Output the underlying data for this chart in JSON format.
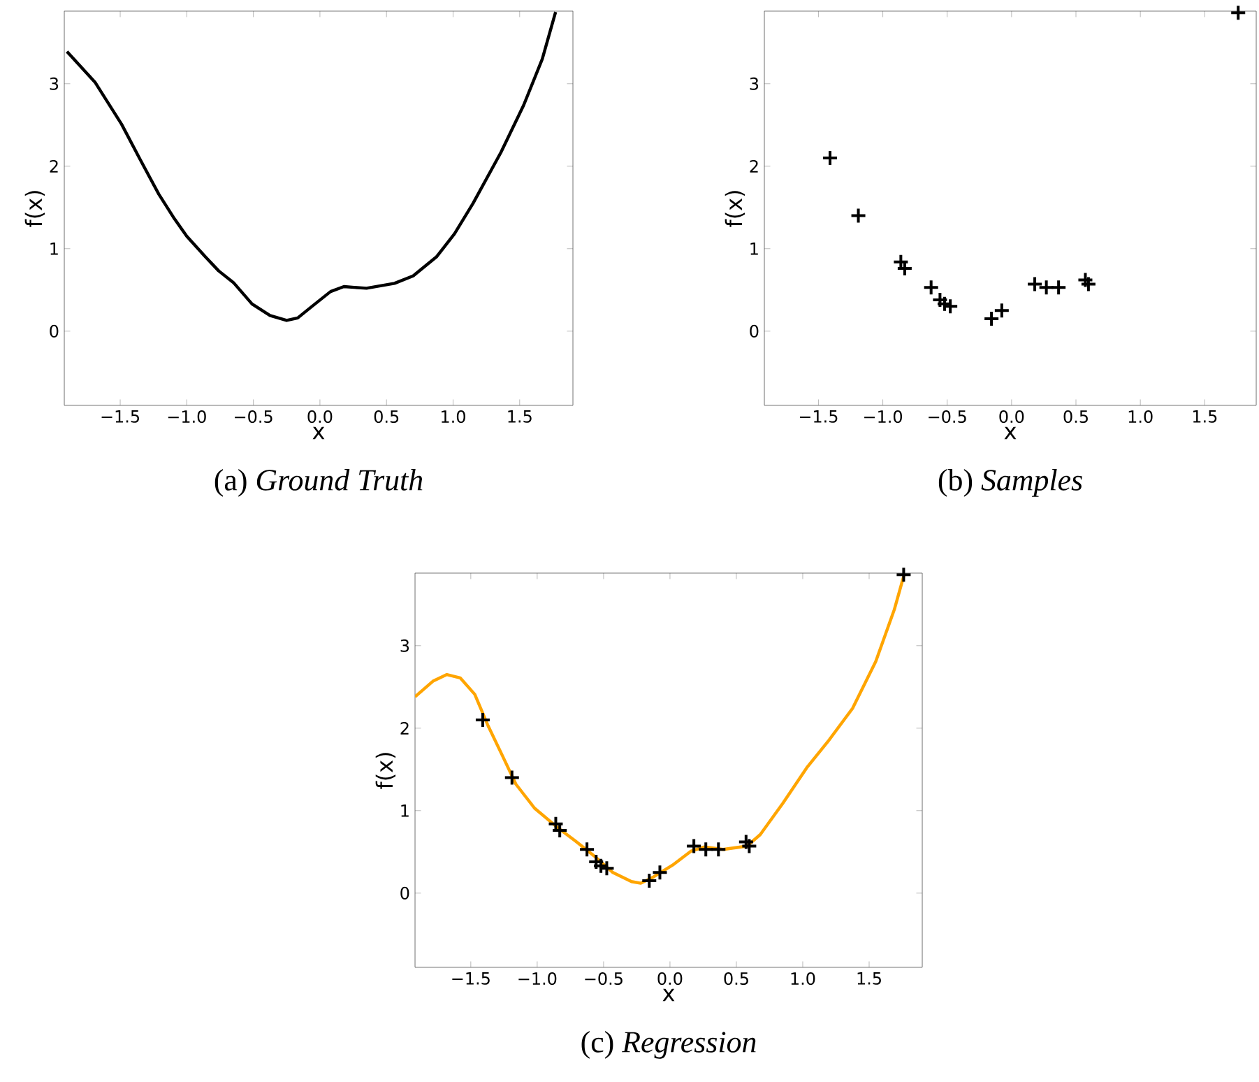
{
  "chart_data": [
    {
      "type": "line",
      "title": "(a) *Ground Truth*",
      "xlabel": "x",
      "ylabel": "f(x)",
      "xlim": [
        -1.92,
        1.9
      ],
      "ylim": [
        -0.9,
        3.88
      ],
      "xticks": [
        {
          "value": -1.5,
          "label": "−1.5"
        },
        {
          "value": -1.0,
          "label": "−1.0"
        },
        {
          "value": -0.5,
          "label": "−0.5"
        },
        {
          "value": 0.0,
          "label": "0.0"
        },
        {
          "value": 0.5,
          "label": "0.5"
        },
        {
          "value": 1.0,
          "label": "1.0"
        },
        {
          "value": 1.5,
          "label": "1.5"
        }
      ],
      "yticks": [
        0,
        1,
        2,
        3
      ],
      "series": [
        {
          "color": "#000000",
          "x": [
            -1.9,
            -1.69,
            -1.49,
            -1.35,
            -1.21,
            -1.1,
            -1.0,
            -0.86,
            -0.76,
            -0.65,
            -0.51,
            -0.375,
            -0.25,
            -0.167,
            -0.06,
            0.08,
            0.18,
            0.35,
            0.56,
            0.7,
            0.875,
            1.01,
            1.15,
            1.36,
            1.53,
            1.67,
            1.77
          ],
          "values": [
            3.39,
            3.02,
            2.51,
            2.08,
            1.66,
            1.38,
            1.15,
            0.9,
            0.73,
            0.59,
            0.33,
            0.19,
            0.13,
            0.16,
            0.3,
            0.48,
            0.54,
            0.52,
            0.58,
            0.67,
            0.9,
            1.18,
            1.55,
            2.17,
            2.74,
            3.3,
            3.87
          ]
        }
      ]
    },
    {
      "type": "scatter",
      "title": "(b) *Samples*",
      "xlabel": "x",
      "ylabel": "f(x)",
      "xlim": [
        -1.92,
        1.9
      ],
      "ylim": [
        -0.9,
        3.88
      ],
      "marker": "cross",
      "xticks": [
        {
          "value": -1.5,
          "label": "−1.5"
        },
        {
          "value": -1.0,
          "label": "−1.0"
        },
        {
          "value": -0.5,
          "label": "−0.5"
        },
        {
          "value": 0.0,
          "label": "0.0"
        },
        {
          "value": 0.5,
          "label": "0.5"
        },
        {
          "value": 1.0,
          "label": "1.0"
        },
        {
          "value": 1.5,
          "label": "1.5"
        }
      ],
      "yticks": [
        0,
        1,
        2,
        3
      ],
      "series": [
        {
          "color": "#000000",
          "x": [
            -1.41,
            -1.19,
            -0.86,
            -0.83,
            -0.625,
            -0.556,
            -0.52,
            -0.476,
            -0.156,
            -0.076,
            0.18,
            0.27,
            0.365,
            0.573,
            0.597,
            1.76
          ],
          "values": [
            2.1,
            1.4,
            0.84,
            0.76,
            0.53,
            0.38,
            0.33,
            0.3,
            0.15,
            0.25,
            0.57,
            0.53,
            0.53,
            0.62,
            0.57,
            3.86
          ]
        }
      ]
    },
    {
      "type": "line",
      "title": "(c) *Regression*",
      "xlabel": "x",
      "ylabel": "f(x)",
      "xlim": [
        -1.92,
        1.9
      ],
      "ylim": [
        -0.9,
        3.88
      ],
      "xticks": [
        {
          "value": -1.5,
          "label": "−1.5"
        },
        {
          "value": -1.0,
          "label": "−1.0"
        },
        {
          "value": -0.5,
          "label": "−0.5"
        },
        {
          "value": 0.0,
          "label": "0.0"
        },
        {
          "value": 0.5,
          "label": "0.5"
        },
        {
          "value": 1.0,
          "label": "1.0"
        },
        {
          "value": 1.5,
          "label": "1.5"
        }
      ],
      "yticks": [
        0,
        1,
        2,
        3
      ],
      "series": [
        {
          "type": "line",
          "color": "#ffa500",
          "x": [
            -1.92,
            -1.785,
            -1.68,
            -1.58,
            -1.47,
            -1.37,
            -1.26,
            -1.16,
            -1.02,
            -0.85,
            -0.71,
            -0.57,
            -0.43,
            -0.29,
            -0.22,
            -0.12,
            0.02,
            0.16,
            0.26,
            0.4,
            0.58,
            0.68,
            0.85,
            1.03,
            1.2,
            1.375,
            1.55,
            1.69,
            1.765
          ],
          "values": [
            2.38,
            2.57,
            2.65,
            2.61,
            2.41,
            2.03,
            1.66,
            1.32,
            1.03,
            0.8,
            0.63,
            0.45,
            0.25,
            0.14,
            0.12,
            0.2,
            0.34,
            0.51,
            0.56,
            0.53,
            0.57,
            0.71,
            1.09,
            1.52,
            1.86,
            2.24,
            2.81,
            3.44,
            3.87
          ]
        },
        {
          "type": "scatter",
          "marker": "cross",
          "color": "#000000",
          "x": [
            -1.41,
            -1.19,
            -0.86,
            -0.83,
            -0.625,
            -0.556,
            -0.52,
            -0.476,
            -0.156,
            -0.076,
            0.18,
            0.27,
            0.365,
            0.573,
            0.597,
            1.76
          ],
          "values": [
            2.1,
            1.4,
            0.84,
            0.76,
            0.53,
            0.38,
            0.33,
            0.3,
            0.15,
            0.25,
            0.57,
            0.53,
            0.53,
            0.62,
            0.57,
            3.86
          ]
        }
      ]
    }
  ]
}
